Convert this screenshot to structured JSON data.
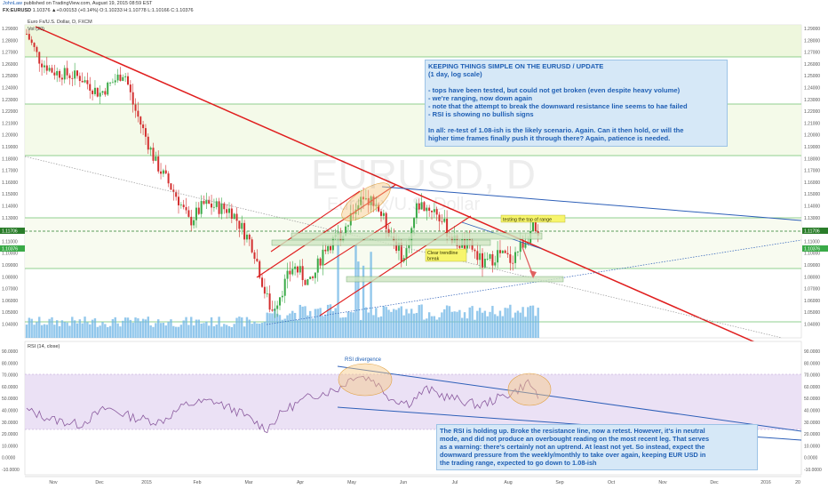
{
  "header": {
    "publish_line_user": "JohnLaw",
    "publish_line_rest": "published on TradingView.com, August 19, 2015 08:59 EST",
    "quote_symbol": "FX:EURUSD",
    "quote_values": "1.10376 ▲+0.00153 (+0.14%) O:1.10233 H:1.10778 L:1.10166 C:1.10376",
    "instrument": "Euro Fx/U.S. Dollar, D, FXCM",
    "volume_label": "Vol (20)"
  },
  "watermark": {
    "symbol": "EURUSD, D",
    "name": "Euro Fx/U.S. Dollar"
  },
  "price_axis": {
    "ticks": [
      "1.29000",
      "1.28000",
      "1.27000",
      "1.26000",
      "1.25000",
      "1.24000",
      "1.23000",
      "1.22000",
      "1.21000",
      "1.20000",
      "1.19000",
      "1.18000",
      "1.17000",
      "1.16000",
      "1.15000",
      "1.14000",
      "1.13000",
      "1.12000",
      "1.11000",
      "1.10000",
      "1.09000",
      "1.08000",
      "1.07000",
      "1.06000",
      "1.05000",
      "1.04000"
    ],
    "price_badge": "1.11706",
    "current_badge": "1.10376"
  },
  "rsi_axis": {
    "ticks": [
      "90.0000",
      "80.0000",
      "70.0000",
      "60.0000",
      "50.0000",
      "40.0000",
      "30.0000",
      "20.0000",
      "10.0000",
      "0.0000",
      "-10.0000"
    ]
  },
  "time_axis": {
    "labels": [
      "Nov",
      "Dec",
      "2015",
      "Feb",
      "Mar",
      "Apr",
      "May",
      "Jun",
      "Jul",
      "Aug",
      "Sep",
      "Oct",
      "Nov",
      "Dec",
      "2016",
      "20"
    ]
  },
  "rsi_panel": {
    "label": "RSI (14, close)"
  },
  "annotations": {
    "top_note": [
      "KEEPING THINGS SIMPLE ON THE EURUSD / UPDATE",
      "(1 day, log scale)",
      "",
      "- tops have been tested, but could not get broken (even despite heavy volume)",
      "- we're ranging, now down again",
      "- note that the attempt to break the downward resistance line seems to hae failed",
      "- RSI is showing no bullish signs",
      "",
      "In all: re-test of 1.08-ish is the likely scenario. Again. Can  it then hold, or will the",
      "higher time frames finally push it through there? Again, patience is needed."
    ],
    "testing_label": "testing the top of range",
    "trendline_label": [
      "Clear trendline",
      "break"
    ],
    "rsi_divergence": "RSI divergence",
    "bottom_note": [
      "The RSI is holding up. Broke the resistance line, now a retest. However, it's in neutral",
      "mode, and did not produce an overbought reading on the most recent leg. That serves",
      "as a warning: there's certainly not an uptrend. At least not yet. So instead, expect the",
      "downward pressure from the  weekly/monthly to take over again, keeping EUR USD in",
      "the trading range, expected to go down to 1.08-ish"
    ]
  },
  "colors": {
    "bull": "#3aaa48",
    "bear": "#d32f2f",
    "trend_red": "#e01e1e",
    "blue_line": "#2d5fb8",
    "volume": "#6fb6e6",
    "rsi_line": "#8a5a9e",
    "rsi_band": "#e8dcf3",
    "note_bg": "#d6e8f7",
    "note_text": "#1f5fb4",
    "yellow_label": "#f7f56c",
    "ellipse": "#f6c882",
    "price_badge": "#2a7d2a",
    "current_badge": "#3aaa48"
  },
  "chart_data": [
    {
      "type": "candlestick",
      "title": "Euro Fx/U.S. Dollar, D, FXCM",
      "x_labels": [
        "Nov",
        "Dec",
        "2015",
        "Feb",
        "Mar",
        "Apr",
        "May",
        "Jun",
        "Jul",
        "Aug",
        "Sep",
        "Oct",
        "Nov",
        "Dec",
        "2016",
        "20"
      ],
      "ylim": [
        1.04,
        1.29
      ],
      "y_scale": "log",
      "monthly_closes": [
        {
          "x": "Nov",
          "y": 1.245
        },
        {
          "x": "Dec",
          "y": 1.21
        },
        {
          "x": "2015",
          "y": 1.13
        },
        {
          "x": "Feb",
          "y": 1.12
        },
        {
          "x": "Mar",
          "y": 1.07
        },
        {
          "x": "Apr",
          "y": 1.12
        },
        {
          "x": "May",
          "y": 1.1
        },
        {
          "x": "Jun",
          "y": 1.115
        },
        {
          "x": "Jul",
          "y": 1.095
        },
        {
          "x": "Aug",
          "y": 1.104
        }
      ],
      "last_close": 1.10376
    },
    {
      "type": "line",
      "title": "RSI (14, close)",
      "x_labels": [
        "Nov",
        "Dec",
        "2015",
        "Feb",
        "Mar",
        "Apr",
        "May",
        "Jun",
        "Jul",
        "Aug"
      ],
      "ylim": [
        -10,
        90
      ],
      "overbought_band": [
        30,
        70
      ],
      "values_monthly": [
        35,
        30,
        40,
        42,
        28,
        50,
        65,
        55,
        45,
        58
      ]
    }
  ]
}
